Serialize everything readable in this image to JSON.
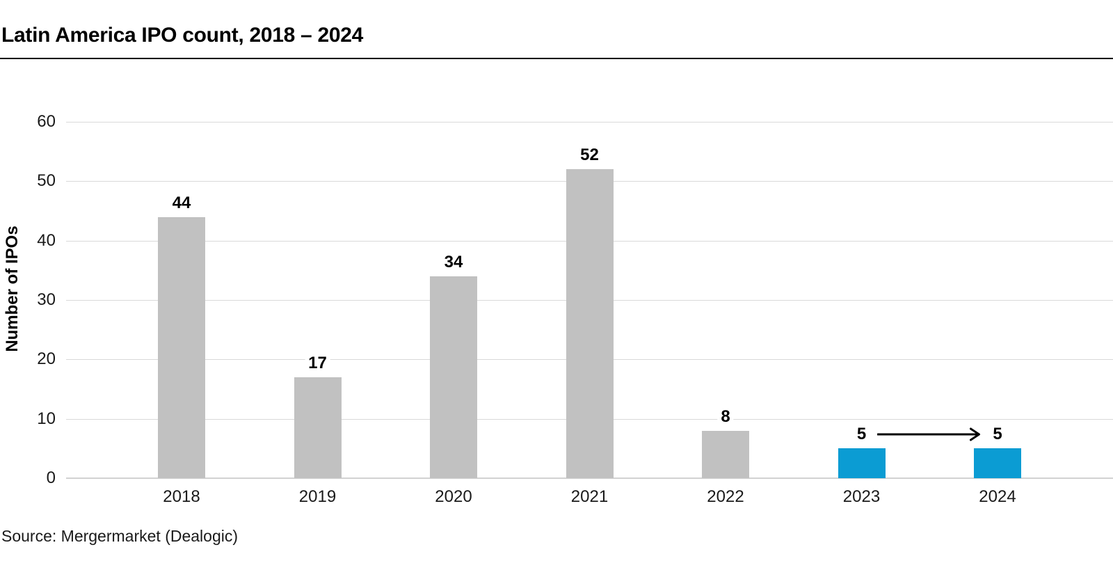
{
  "header": {
    "title": "Latin America IPO count, 2018 – 2024"
  },
  "footer": {
    "source": "Source: Mergermarket (Dealogic)"
  },
  "chart_data": {
    "type": "bar",
    "title": "Latin America IPO count, 2018 – 2024",
    "categories": [
      "2018",
      "2019",
      "2020",
      "2021",
      "2022",
      "2023",
      "2024"
    ],
    "values": [
      44,
      17,
      34,
      52,
      8,
      5,
      5
    ],
    "data_labels": [
      "44",
      "17",
      "34",
      "52",
      "8",
      "5",
      "5"
    ],
    "xlabel": "",
    "ylabel": "Number of IPOs",
    "ylim": [
      0,
      60
    ],
    "yticks": [
      0,
      10,
      20,
      30,
      40,
      50,
      60
    ],
    "grid": "horizontal",
    "legend_position": "none",
    "bar_colors": [
      "#c1c1c1",
      "#c1c1c1",
      "#c1c1c1",
      "#c1c1c1",
      "#c1c1c1",
      "#0b9cd3",
      "#0b9cd3"
    ],
    "colors": {
      "default_bar": "#c1c1c1",
      "highlight_bar": "#0b9cd3",
      "gridline": "#d9d9d9",
      "text": "#000000",
      "arrow": "#000000"
    },
    "annotation": {
      "type": "arrow",
      "from_category": "2023",
      "to_category": "2024",
      "meaning": "flat trend between 2023 and 2024 data labels"
    }
  }
}
